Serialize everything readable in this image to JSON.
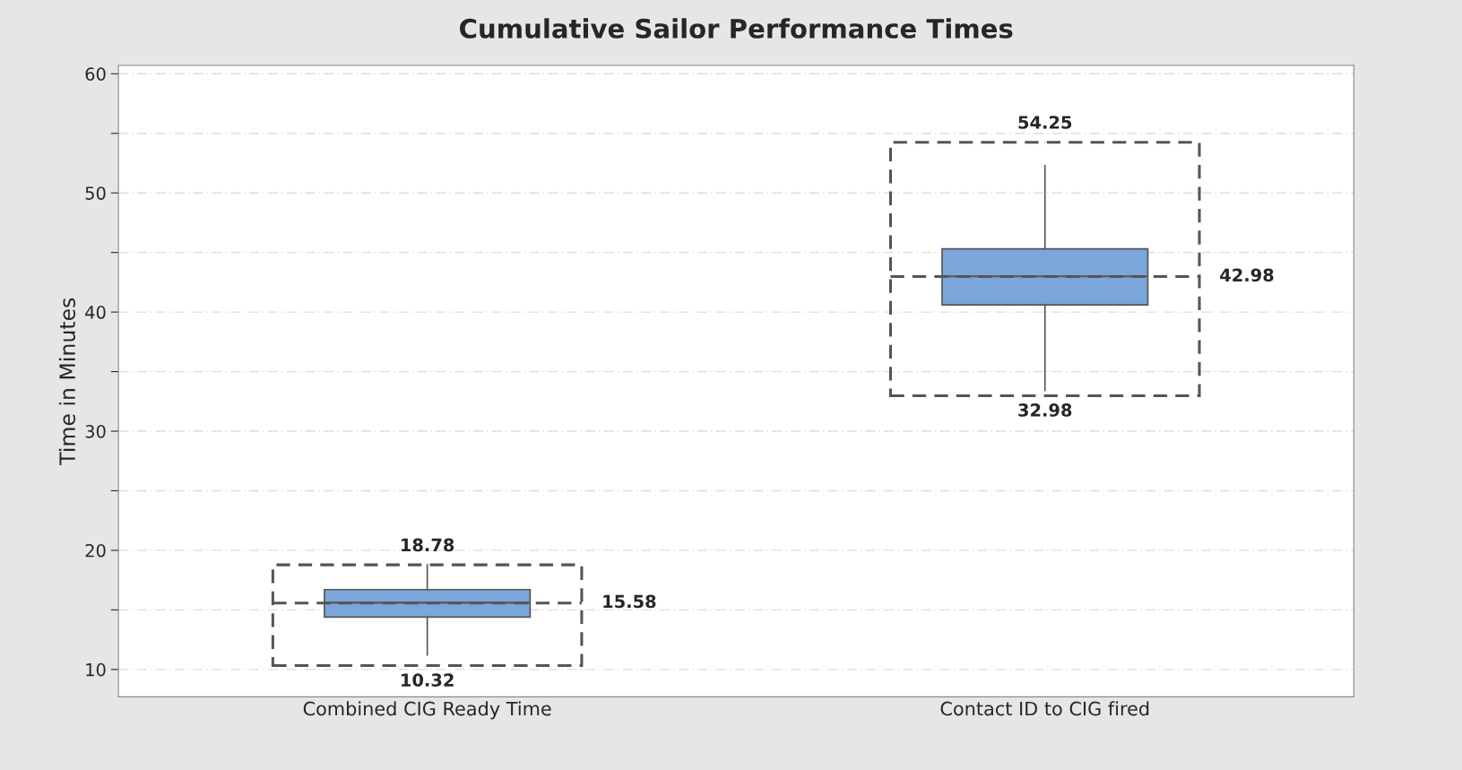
{
  "chart_data": {
    "type": "box",
    "title": "Cumulative Sailor Performance Times",
    "ylabel": "Time in Minutes",
    "categories": [
      "Combined CIG Ready Time",
      "Contact ID to CIG fired"
    ],
    "series": [
      {
        "color": "#7aa6d9",
        "line_style": "solid",
        "boxes": [
          {
            "low": 11.2,
            "q1": 14.4,
            "median": 15.6,
            "q3": 16.7,
            "high": 18.8
          },
          {
            "low": 33.4,
            "q1": 40.6,
            "median": 43.0,
            "q3": 45.3,
            "high": 52.3
          }
        ]
      },
      {
        "color": "#555555",
        "line_style": "dashed",
        "boxes": [
          {
            "low": 10.32,
            "q1": 10.32,
            "median": 15.58,
            "q3": 18.78,
            "high": 18.78
          },
          {
            "low": 32.98,
            "q1": 32.98,
            "median": 42.98,
            "q3": 54.25,
            "high": 54.25
          }
        ]
      }
    ],
    "ylim": [
      7.7,
      60.7
    ],
    "yticks": [
      10,
      {
        "value": 15,
        "label": null
      },
      20,
      {
        "value": 25,
        "label": null
      },
      30,
      {
        "value": 35,
        "label": null
      },
      40,
      {
        "value": 45,
        "label": null
      },
      50,
      {
        "value": 55,
        "label": null
      },
      60
    ],
    "grid": "y",
    "annotations": [
      {
        "text": "18.78",
        "x": "Combined CIG Ready Time",
        "y": 18.78
      },
      "15.58",
      {
        "text": "10.32",
        "x": "Combined CIG Ready Time",
        "y": 10.32
      },
      {
        "text": "54.25",
        "x": "Contact ID to CIG fired",
        "y": 54.25
      },
      "42.98",
      {
        "text": "32.98",
        "x": "Contact ID to CIG fired",
        "y": 32.98
      }
    ]
  }
}
